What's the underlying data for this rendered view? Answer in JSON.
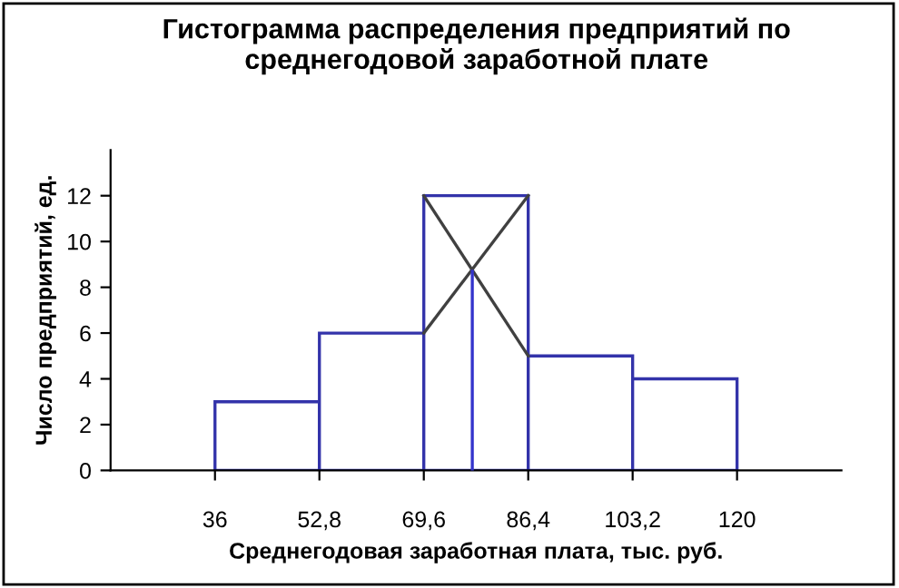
{
  "chart_data": {
    "type": "histogram",
    "title": "Гистограмма распределения предприятий по среднегодовой заработной плате",
    "xlabel": "Среднегодовая заработная плата, тыс. руб.",
    "ylabel": "Число предприятий, ед.",
    "bins": [
      36,
      52.8,
      69.6,
      86.4,
      103.2,
      120
    ],
    "values": [
      3,
      6,
      12,
      5,
      4
    ],
    "color": "#3333aa",
    "series": [
      {
        "type": "line",
        "x": [
          69.6,
          86.4
        ],
        "values": [
          6,
          12
        ],
        "color": "#404040"
      },
      {
        "type": "line",
        "x": [
          69.6,
          86.4
        ],
        "values": [
          12,
          5
        ],
        "color": "#404040"
      },
      {
        "type": "line",
        "x": [
          77.4,
          77.4
        ],
        "values": [
          0,
          8.7
        ],
        "color": "#3333cc"
      }
    ],
    "xlim": [
      19.2,
      136.8
    ],
    "xticks": [
      36,
      {
        "value": 52.8,
        "label": "52,8"
      },
      {
        "value": 69.6,
        "label": "69,6"
      },
      {
        "value": 86.4,
        "label": "86,4"
      },
      {
        "value": 103.2,
        "label": "103,2"
      },
      120
    ],
    "ylim": [
      0,
      14
    ],
    "yticks": [
      0,
      2,
      4,
      6,
      8,
      10,
      12
    ],
    "grid": false,
    "legend": false
  }
}
